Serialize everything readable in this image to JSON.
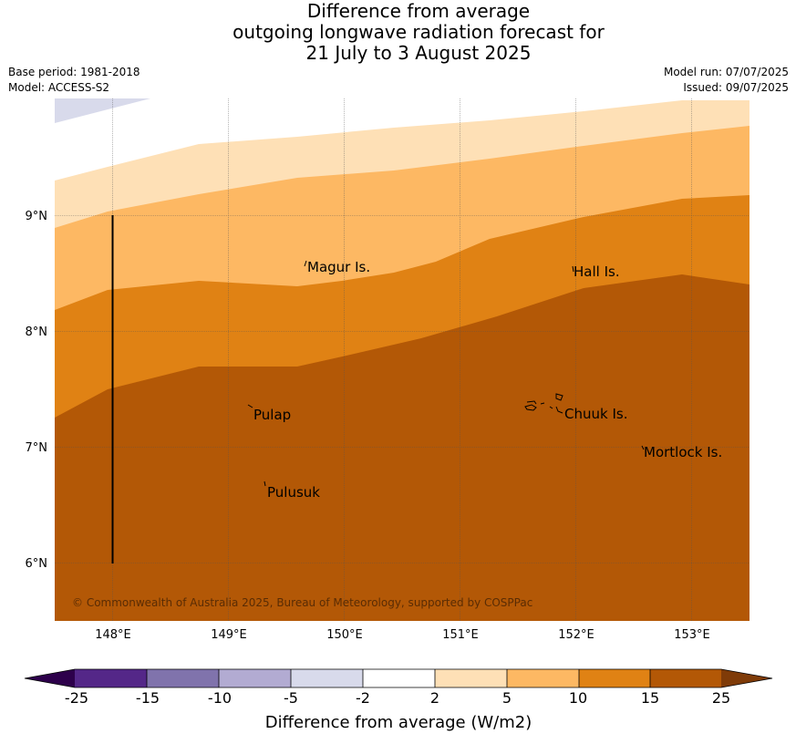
{
  "title": {
    "line1": "Difference from average",
    "line2": "outgoing longwave radiation forecast for",
    "line3": "21 July to 3 August 2025"
  },
  "meta": {
    "base_period": "Base period: 1981-2018",
    "model": "Model: ACCESS-S2",
    "model_run": "Model run: 07/07/2025",
    "issued": "Issued: 09/07/2025"
  },
  "map": {
    "lon_range": [
      147.5,
      153.5
    ],
    "lat_range": [
      5.5,
      10.0
    ],
    "lon_ticks": [
      "148°E",
      "149°E",
      "150°E",
      "151°E",
      "152°E",
      "153°E"
    ],
    "lat_ticks": [
      "9°N",
      "8°N",
      "7°N",
      "6°N"
    ],
    "places": [
      {
        "name": "Magur Is.",
        "lon": 149.7,
        "lat": 8.55
      },
      {
        "name": "Hall Is.",
        "lon": 151.95,
        "lat": 8.5
      },
      {
        "name": "Pulap",
        "lon": 149.2,
        "lat": 7.28
      },
      {
        "name": "Chuuk Is.",
        "lon": 151.9,
        "lat": 7.28
      },
      {
        "name": "Mortlock Is.",
        "lon": 152.6,
        "lat": 6.95
      },
      {
        "name": "Pulusuk",
        "lon": 149.32,
        "lat": 6.62
      }
    ],
    "credit": "© Commonwealth of Australia 2025, Bureau of Meteorology, supported by COSPPac"
  },
  "colorbar": {
    "title": "Difference from average (W/m2)",
    "labels": [
      "-25",
      "-15",
      "-10",
      "-5",
      "-2",
      "2",
      "5",
      "10",
      "15",
      "25"
    ],
    "colors": {
      "below_-25": "#2d004b",
      "-25_-15": "#542788",
      "-15_-10": "#8073ac",
      "-10_-5": "#b2abd2",
      "-5_-2": "#d8daeb",
      "-2_2": "#ffffff",
      "2_5": "#fee0b6",
      "5_10": "#fdb863",
      "10_15": "#e08214",
      "15_25": "#b35806",
      "above_25": "#7f3b08"
    }
  }
}
